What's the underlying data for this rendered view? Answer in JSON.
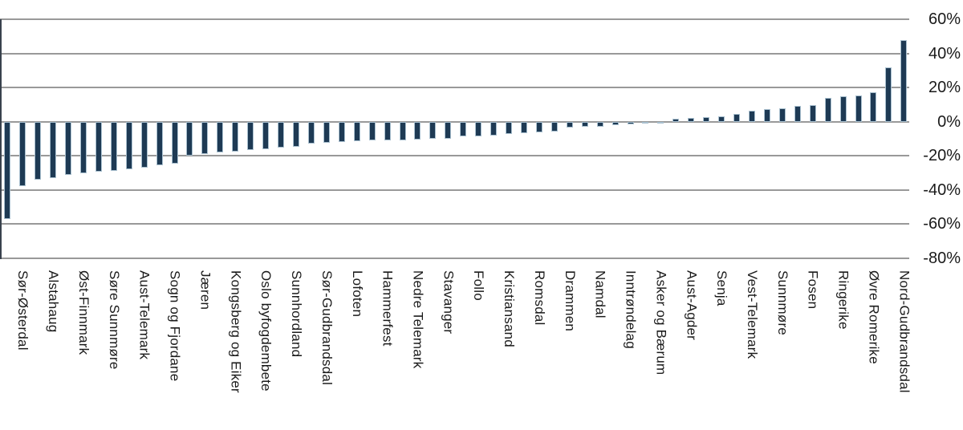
{
  "chart_data": {
    "type": "bar",
    "title": "",
    "xlabel": "",
    "ylabel": "",
    "unit": "%",
    "ylim": [
      -80,
      60
    ],
    "yticks": [
      "60%",
      "40%",
      "20%",
      "0%",
      "-20%",
      "-40%",
      "-60%",
      "-80%"
    ],
    "grid": true,
    "legend": "none",
    "bar_color": "#1e3a54",
    "bar_edge_color": "#a9c0cf",
    "gridline_color": "#999999",
    "axis_line_color": "#39424d",
    "text_color": "#1a1a1a",
    "note": "Sorted change in percent per district; only every second bar carries a category label",
    "bars": [
      {
        "label": "",
        "value": -57
      },
      {
        "label": "Sør-Østerdal",
        "value": -38
      },
      {
        "label": "",
        "value": -34
      },
      {
        "label": "Alstahaug",
        "value": -33
      },
      {
        "label": "",
        "value": -31.5
      },
      {
        "label": "Øst-Finnmark",
        "value": -30.5
      },
      {
        "label": "",
        "value": -29.5
      },
      {
        "label": "Søre Sunnmøre",
        "value": -29
      },
      {
        "label": "",
        "value": -28
      },
      {
        "label": "Aust-Telemark",
        "value": -27
      },
      {
        "label": "",
        "value": -25.5
      },
      {
        "label": "Sogn og Fjordane",
        "value": -24.5
      },
      {
        "label": "",
        "value": -20
      },
      {
        "label": "Jæren",
        "value": -19
      },
      {
        "label": "",
        "value": -18
      },
      {
        "label": "Kongsberg og Eiker",
        "value": -17.5
      },
      {
        "label": "",
        "value": -16.5
      },
      {
        "label": "Oslo byfogdembete",
        "value": -16
      },
      {
        "label": "",
        "value": -15.5
      },
      {
        "label": "Sunnhordland",
        "value": -15
      },
      {
        "label": "",
        "value": -13
      },
      {
        "label": "Sør-Gudbrandsdal",
        "value": -12.5
      },
      {
        "label": "",
        "value": -12
      },
      {
        "label": "Lofoten",
        "value": -11.5
      },
      {
        "label": "",
        "value": -11
      },
      {
        "label": "Hammerfest",
        "value": -11
      },
      {
        "label": "",
        "value": -11
      },
      {
        "label": "Nedre Telemark",
        "value": -10.5
      },
      {
        "label": "",
        "value": -10
      },
      {
        "label": "Stavanger",
        "value": -10
      },
      {
        "label": "",
        "value": -8.5
      },
      {
        "label": "Follo",
        "value": -8.5
      },
      {
        "label": "",
        "value": -8
      },
      {
        "label": "Kristiansand",
        "value": -7.5
      },
      {
        "label": "",
        "value": -7
      },
      {
        "label": "Romsdal",
        "value": -6.5
      },
      {
        "label": "",
        "value": -6
      },
      {
        "label": "Drammen",
        "value": -3.5
      },
      {
        "label": "",
        "value": -3
      },
      {
        "label": "Namdal",
        "value": -3
      },
      {
        "label": "",
        "value": -2
      },
      {
        "label": "Inntrøndelag",
        "value": -1.5
      },
      {
        "label": "",
        "value": -1
      },
      {
        "label": "Asker og Bærum",
        "value": -0.5
      },
      {
        "label": "",
        "value": 1.5
      },
      {
        "label": "Aust-Agder",
        "value": 2
      },
      {
        "label": "",
        "value": 2.5
      },
      {
        "label": "Senja",
        "value": 3
      },
      {
        "label": "",
        "value": 4.5
      },
      {
        "label": "Vest-Telemark",
        "value": 6.5
      },
      {
        "label": "",
        "value": 7.5
      },
      {
        "label": "Sunnmøre",
        "value": 8
      },
      {
        "label": "",
        "value": 9
      },
      {
        "label": "Fosen",
        "value": 9.5
      },
      {
        "label": "",
        "value": 14
      },
      {
        "label": "Ringerike",
        "value": 15
      },
      {
        "label": "",
        "value": 15.5
      },
      {
        "label": "Øvre Romerike",
        "value": 17
      },
      {
        "label": "",
        "value": 32
      },
      {
        "label": "Nord-Gudbrandsdal",
        "value": 48
      }
    ]
  }
}
